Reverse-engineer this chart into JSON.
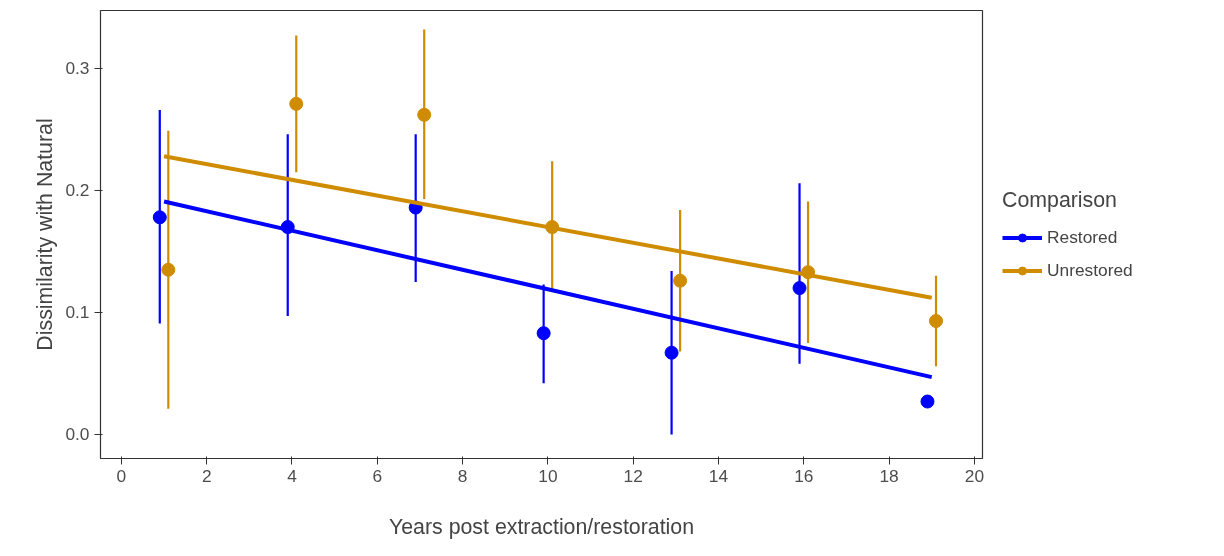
{
  "chart_data": {
    "type": "scatter",
    "xlabel": "Years post extraction/restoration",
    "ylabel": "Dissimilarity with Natural",
    "legend_title": "Comparison",
    "legend": "right",
    "grid": false,
    "xlim": [
      -0.49,
      20.19
    ],
    "ylim": [
      -0.0197,
      0.3475
    ],
    "xticks": [
      0,
      2,
      4,
      6,
      8,
      10,
      12,
      14,
      16,
      18,
      20
    ],
    "yticks": [
      {
        "value": 0,
        "label": "0.0"
      },
      0.1,
      0.2,
      0.3
    ],
    "series": [
      {
        "name": "Restored",
        "marker": "circle",
        "color": "#0000ff",
        "x": [
          0.9,
          3.9,
          6.9,
          9.9,
          12.9,
          15.9,
          18.9
        ],
        "values": [
          0.178,
          0.17,
          0.186,
          0.083,
          0.067,
          0.12,
          0.027
        ],
        "errors": [
          [
            0.091,
            0.266
          ],
          [
            0.097,
            0.246
          ],
          [
            0.125,
            0.246
          ],
          [
            0.042,
            0.123
          ],
          [
            0.0,
            0.134
          ],
          [
            0.058,
            0.206
          ],
          null
        ]
      },
      {
        "name": "Unrestored",
        "marker": "circle",
        "color": "#d08c00",
        "x": [
          1.1,
          4.1,
          7.1,
          10.1,
          13.1,
          16.1,
          19.1
        ],
        "values": [
          0.135,
          0.271,
          0.262,
          0.17,
          0.126,
          0.133,
          0.093
        ],
        "errors": [
          [
            0.021,
            0.249
          ],
          [
            0.215,
            0.327
          ],
          [
            0.193,
            0.332
          ],
          [
            0.118,
            0.224
          ],
          [
            0.068,
            0.184
          ],
          [
            0.075,
            0.191
          ],
          [
            0.056,
            0.13
          ]
        ]
      },
      {
        "type": "line",
        "color": "#0000ff",
        "x": [
          1,
          19
        ],
        "values": [
          0.191,
          0.047
        ]
      },
      {
        "type": "line",
        "color": "#d08c00",
        "x": [
          1,
          19
        ],
        "values": [
          0.228,
          0.112
        ]
      }
    ]
  }
}
